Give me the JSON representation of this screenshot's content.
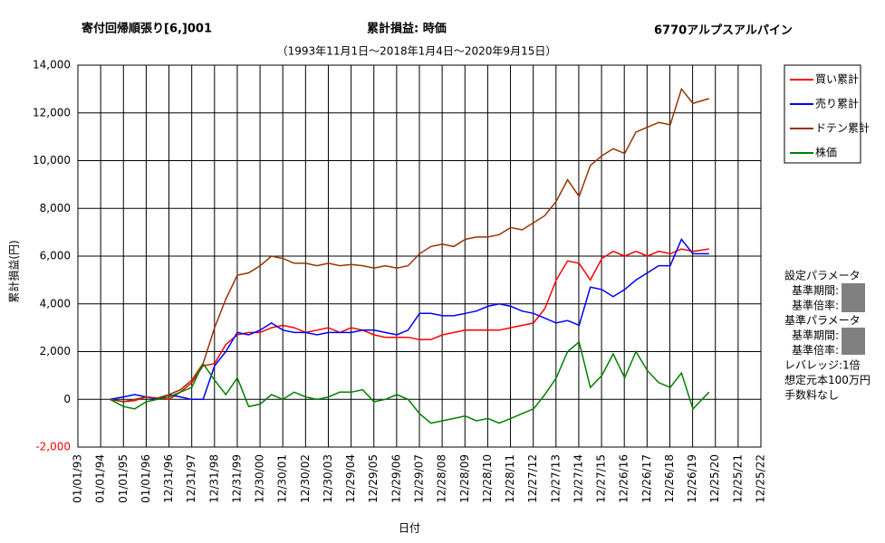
{
  "chart_data": {
    "type": "line",
    "title": "寄付回帰順張り[6,]001",
    "subtitle": "累計損益:  時価",
    "symbol": "6770アルプスアルパイン",
    "period": "（1993年11月1日～2018年1月4日～2020年9月15日）",
    "ylabel": "累計損益(円)",
    "xlabel": "日付",
    "grid": true,
    "legend": "right",
    "xlim": [
      "1993-01-01",
      "2022-12-25"
    ],
    "xticks": [
      {
        "value": "1993-01-01",
        "label": "01/01/93"
      },
      {
        "value": "1994-01-01",
        "label": "01/01/94"
      },
      {
        "value": "1995-01-01",
        "label": "01/01/95"
      },
      {
        "value": "1996-01-01",
        "label": "01/01/96"
      },
      {
        "value": "1996-12-31",
        "label": "12/31/96"
      },
      {
        "value": "1997-12-31",
        "label": "12/31/97"
      },
      {
        "value": "1998-12-31",
        "label": "12/31/98"
      },
      {
        "value": "1999-12-31",
        "label": "12/31/99"
      },
      {
        "value": "2000-12-30",
        "label": "12/30/00"
      },
      {
        "value": "2001-12-30",
        "label": "12/30/01"
      },
      {
        "value": "2002-12-30",
        "label": "12/30/02"
      },
      {
        "value": "2003-12-30",
        "label": "12/30/03"
      },
      {
        "value": "2004-12-29",
        "label": "12/29/04"
      },
      {
        "value": "2005-12-29",
        "label": "12/29/05"
      },
      {
        "value": "2006-12-29",
        "label": "12/29/06"
      },
      {
        "value": "2007-12-29",
        "label": "12/29/07"
      },
      {
        "value": "2008-12-28",
        "label": "12/28/08"
      },
      {
        "value": "2009-12-28",
        "label": "12/28/09"
      },
      {
        "value": "2010-12-28",
        "label": "12/28/10"
      },
      {
        "value": "2011-12-28",
        "label": "12/28/11"
      },
      {
        "value": "2012-12-27",
        "label": "12/27/12"
      },
      {
        "value": "2013-12-27",
        "label": "12/27/13"
      },
      {
        "value": "2014-12-27",
        "label": "12/27/14"
      },
      {
        "value": "2015-12-27",
        "label": "12/27/15"
      },
      {
        "value": "2016-12-26",
        "label": "12/26/16"
      },
      {
        "value": "2017-12-26",
        "label": "12/26/17"
      },
      {
        "value": "2018-12-26",
        "label": "12/26/18"
      },
      {
        "value": "2019-12-26",
        "label": "12/26/19"
      },
      {
        "value": "2020-12-25",
        "label": "12/25/20"
      },
      {
        "value": "2021-12-25",
        "label": "12/25/21"
      },
      {
        "value": "2022-12-25",
        "label": "12/25/22"
      }
    ],
    "ylim": [
      -2000,
      14000
    ],
    "yticks": [
      {
        "value": -2000,
        "label": "-2,000"
      },
      0,
      {
        "value": 2000,
        "label": "2,000"
      },
      {
        "value": 4000,
        "label": "4,000"
      },
      {
        "value": 6000,
        "label": "6,000"
      },
      {
        "value": 8000,
        "label": "8,000"
      },
      {
        "value": 10000,
        "label": "10,000"
      },
      {
        "value": 12000,
        "label": "12,000"
      },
      {
        "value": 14000,
        "label": "14,000"
      }
    ],
    "x": [
      "1994-06-01",
      "1995-01-01",
      "1995-07-01",
      "1996-01-01",
      "1996-07-01",
      "1997-01-01",
      "1997-07-01",
      "1998-01-01",
      "1998-07-01",
      "1999-01-01",
      "1999-07-01",
      "2000-01-01",
      "2000-07-01",
      "2001-01-01",
      "2001-07-01",
      "2002-01-01",
      "2002-07-01",
      "2003-01-01",
      "2003-07-01",
      "2004-01-01",
      "2004-07-01",
      "2005-01-01",
      "2005-07-01",
      "2006-01-01",
      "2006-07-01",
      "2007-01-01",
      "2007-07-01",
      "2008-01-01",
      "2008-07-01",
      "2009-01-01",
      "2009-07-01",
      "2010-01-01",
      "2010-07-01",
      "2011-01-01",
      "2011-07-01",
      "2012-01-01",
      "2012-07-01",
      "2013-01-01",
      "2013-07-01",
      "2014-01-01",
      "2014-07-01",
      "2015-01-01",
      "2015-07-01",
      "2016-01-01",
      "2016-07-01",
      "2017-01-01",
      "2017-07-01",
      "2018-01-01",
      "2018-07-01",
      "2019-01-01",
      "2019-07-01",
      "2020-01-01",
      "2020-09-15"
    ],
    "series": [
      {
        "name": "買い累計",
        "color": "#ff0000",
        "values": [
          0,
          -100,
          -50,
          100,
          50,
          0,
          300,
          700,
          1400,
          1500,
          2300,
          2700,
          2800,
          2800,
          3000,
          3100,
          3000,
          2800,
          2900,
          3000,
          2800,
          3000,
          2900,
          2700,
          2600,
          2600,
          2600,
          2500,
          2500,
          2700,
          2800,
          2900,
          2900,
          2900,
          2900,
          3000,
          3100,
          3200,
          3800,
          5000,
          5800,
          5700,
          5000,
          5900,
          6200,
          6000,
          6200,
          6000,
          6200,
          6100,
          6300,
          6200,
          6300
        ]
      },
      {
        "name": "売り累計",
        "color": "#0000ff",
        "values": [
          0,
          100,
          200,
          100,
          0,
          200,
          100,
          0,
          0,
          1400,
          2000,
          2800,
          2700,
          2900,
          3200,
          2900,
          2800,
          2800,
          2700,
          2800,
          2800,
          2800,
          2900,
          2900,
          2800,
          2700,
          2900,
          3600,
          3600,
          3500,
          3500,
          3600,
          3700,
          3900,
          4000,
          3900,
          3700,
          3600,
          3400,
          3200,
          3300,
          3100,
          4700,
          4600,
          4300,
          4600,
          5000,
          5300,
          5600,
          5600,
          6700,
          6100,
          6100
        ]
      },
      {
        "name": "ドテン累計",
        "color": "#993300",
        "values": [
          0,
          -100,
          0,
          100,
          50,
          200,
          400,
          800,
          1500,
          3000,
          4200,
          5200,
          5300,
          5600,
          6000,
          5900,
          5700,
          5700,
          5600,
          5700,
          5600,
          5650,
          5600,
          5500,
          5600,
          5500,
          5600,
          6100,
          6400,
          6500,
          6400,
          6700,
          6800,
          6800,
          6900,
          7200,
          7100,
          7400,
          7700,
          8300,
          9200,
          8500,
          9800,
          10200,
          10500,
          10300,
          11200,
          11400,
          11600,
          11500,
          13000,
          12400,
          12600
        ]
      },
      {
        "name": "株価",
        "color": "#008000",
        "values": [
          0,
          -300,
          -400,
          -100,
          0,
          100,
          300,
          500,
          1500,
          800,
          200,
          900,
          -300,
          -200,
          200,
          0,
          300,
          100,
          0,
          100,
          300,
          300,
          400,
          -100,
          0,
          200,
          0,
          -600,
          -1000,
          -900,
          -800,
          -700,
          -900,
          -800,
          -1000,
          -800,
          -600,
          -400,
          200,
          900,
          2000,
          2400,
          500,
          1000,
          1900,
          900,
          2000,
          1200,
          700,
          500,
          1100,
          -400,
          300
        ]
      }
    ]
  },
  "notes": [
    "設定パラメータ",
    "基準期間:",
    "基準倍率:",
    "基準パラメータ",
    "基準期間:",
    "基準倍率:",
    "レバレッジ:1倍",
    "想定元本100万円",
    "手数料なし"
  ]
}
